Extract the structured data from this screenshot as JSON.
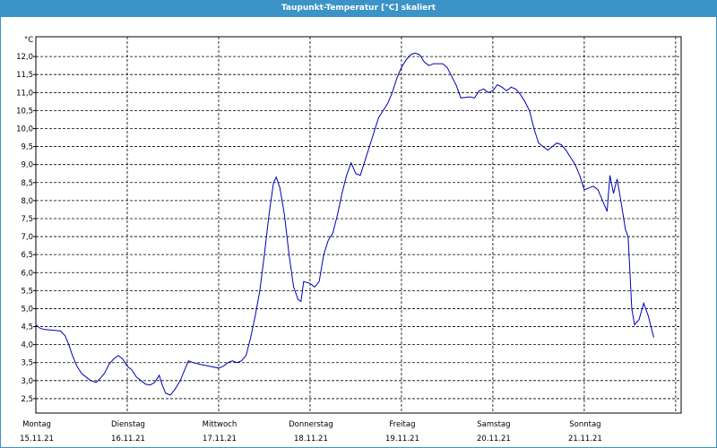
{
  "window": {
    "title": "Taupunkt-Temperatur [°C] skaliert"
  },
  "chart_data": {
    "type": "line",
    "title": "Taupunkt-Temperatur [°C] skaliert",
    "ylabel": "°C",
    "ylim": [
      2.1,
      12.55
    ],
    "yticks": [
      "2,5",
      "3,0",
      "3,5",
      "4,0",
      "4,5",
      "5,0",
      "5,5",
      "6,0",
      "6,5",
      "7,0",
      "7,5",
      "8,0",
      "8,5",
      "9,0",
      "9,5",
      "10,0",
      "10,5",
      "11,0",
      "11,5",
      "12,0"
    ],
    "xlim": [
      0,
      7.06
    ],
    "grid": true,
    "days": [
      {
        "weekday": "Montag",
        "date": "15.11.21"
      },
      {
        "weekday": "Dienstag",
        "date": "16.11.21"
      },
      {
        "weekday": "Mittwoch",
        "date": "17.11.21"
      },
      {
        "weekday": "Donnerstag",
        "date": "18.11.21"
      },
      {
        "weekday": "Freitag",
        "date": "19.11.21"
      },
      {
        "weekday": "Samstag",
        "date": "20.11.21"
      },
      {
        "weekday": "Sonntag",
        "date": "21.11.21"
      }
    ],
    "series": [
      {
        "color": "#0000b4",
        "points": [
          [
            0.0,
            4.55
          ],
          [
            0.05,
            4.45
          ],
          [
            0.1,
            4.42
          ],
          [
            0.2,
            4.4
          ],
          [
            0.27,
            4.38
          ],
          [
            0.32,
            4.25
          ],
          [
            0.36,
            4.0
          ],
          [
            0.4,
            3.7
          ],
          [
            0.45,
            3.4
          ],
          [
            0.5,
            3.2
          ],
          [
            0.55,
            3.1
          ],
          [
            0.6,
            3.0
          ],
          [
            0.66,
            2.95
          ],
          [
            0.7,
            3.05
          ],
          [
            0.75,
            3.2
          ],
          [
            0.8,
            3.45
          ],
          [
            0.85,
            3.6
          ],
          [
            0.9,
            3.7
          ],
          [
            0.95,
            3.6
          ],
          [
            1.0,
            3.4
          ],
          [
            1.05,
            3.3
          ],
          [
            1.1,
            3.1
          ],
          [
            1.15,
            3.0
          ],
          [
            1.2,
            2.9
          ],
          [
            1.25,
            2.88
          ],
          [
            1.3,
            2.95
          ],
          [
            1.35,
            3.15
          ],
          [
            1.38,
            2.9
          ],
          [
            1.42,
            2.65
          ],
          [
            1.47,
            2.6
          ],
          [
            1.52,
            2.75
          ],
          [
            1.58,
            3.0
          ],
          [
            1.62,
            3.25
          ],
          [
            1.67,
            3.55
          ],
          [
            1.72,
            3.5
          ],
          [
            1.8,
            3.45
          ],
          [
            1.9,
            3.4
          ],
          [
            2.0,
            3.35
          ],
          [
            2.05,
            3.4
          ],
          [
            2.1,
            3.5
          ],
          [
            2.15,
            3.55
          ],
          [
            2.2,
            3.5
          ],
          [
            2.25,
            3.55
          ],
          [
            2.3,
            3.7
          ],
          [
            2.35,
            4.2
          ],
          [
            2.4,
            4.8
          ],
          [
            2.45,
            5.5
          ],
          [
            2.5,
            6.5
          ],
          [
            2.55,
            7.6
          ],
          [
            2.6,
            8.5
          ],
          [
            2.63,
            8.65
          ],
          [
            2.67,
            8.35
          ],
          [
            2.72,
            7.6
          ],
          [
            2.77,
            6.5
          ],
          [
            2.82,
            5.6
          ],
          [
            2.87,
            5.25
          ],
          [
            2.9,
            5.2
          ],
          [
            2.93,
            5.75
          ],
          [
            3.0,
            5.7
          ],
          [
            3.05,
            5.6
          ],
          [
            3.1,
            5.75
          ],
          [
            3.15,
            6.5
          ],
          [
            3.2,
            6.9
          ],
          [
            3.25,
            7.1
          ],
          [
            3.3,
            7.6
          ],
          [
            3.35,
            8.2
          ],
          [
            3.4,
            8.7
          ],
          [
            3.45,
            9.05
          ],
          [
            3.5,
            8.75
          ],
          [
            3.55,
            8.7
          ],
          [
            3.6,
            9.1
          ],
          [
            3.65,
            9.5
          ],
          [
            3.7,
            9.9
          ],
          [
            3.75,
            10.3
          ],
          [
            3.8,
            10.5
          ],
          [
            3.85,
            10.7
          ],
          [
            3.9,
            11.0
          ],
          [
            3.95,
            11.4
          ],
          [
            4.0,
            11.7
          ],
          [
            4.05,
            11.9
          ],
          [
            4.1,
            12.05
          ],
          [
            4.15,
            12.1
          ],
          [
            4.2,
            12.05
          ],
          [
            4.25,
            11.85
          ],
          [
            4.3,
            11.75
          ],
          [
            4.35,
            11.8
          ],
          [
            4.45,
            11.8
          ],
          [
            4.5,
            11.7
          ],
          [
            4.55,
            11.45
          ],
          [
            4.6,
            11.2
          ],
          [
            4.65,
            10.85
          ],
          [
            4.75,
            10.88
          ],
          [
            4.8,
            10.85
          ],
          [
            4.85,
            11.05
          ],
          [
            4.9,
            11.1
          ],
          [
            4.95,
            11.0
          ],
          [
            5.0,
            11.05
          ],
          [
            5.05,
            11.22
          ],
          [
            5.1,
            11.15
          ],
          [
            5.15,
            11.05
          ],
          [
            5.2,
            11.15
          ],
          [
            5.25,
            11.1
          ],
          [
            5.3,
            10.95
          ],
          [
            5.35,
            10.75
          ],
          [
            5.4,
            10.5
          ],
          [
            5.45,
            10.0
          ],
          [
            5.5,
            9.6
          ],
          [
            5.55,
            9.5
          ],
          [
            5.6,
            9.4
          ],
          [
            5.65,
            9.5
          ],
          [
            5.7,
            9.6
          ],
          [
            5.75,
            9.55
          ],
          [
            5.8,
            9.4
          ],
          [
            5.85,
            9.2
          ],
          [
            5.9,
            9.0
          ],
          [
            5.95,
            8.7
          ],
          [
            6.0,
            8.3
          ],
          [
            6.05,
            8.35
          ],
          [
            6.1,
            8.4
          ],
          [
            6.15,
            8.3
          ],
          [
            6.2,
            8.0
          ],
          [
            6.25,
            7.7
          ],
          [
            6.28,
            8.7
          ],
          [
            6.32,
            8.2
          ],
          [
            6.36,
            8.6
          ],
          [
            6.4,
            8.0
          ],
          [
            6.45,
            7.2
          ],
          [
            6.48,
            7.0
          ],
          [
            6.5,
            6.0
          ],
          [
            6.52,
            5.0
          ],
          [
            6.55,
            4.55
          ],
          [
            6.6,
            4.7
          ],
          [
            6.65,
            5.15
          ],
          [
            6.7,
            4.8
          ],
          [
            6.76,
            4.2
          ]
        ]
      }
    ]
  }
}
